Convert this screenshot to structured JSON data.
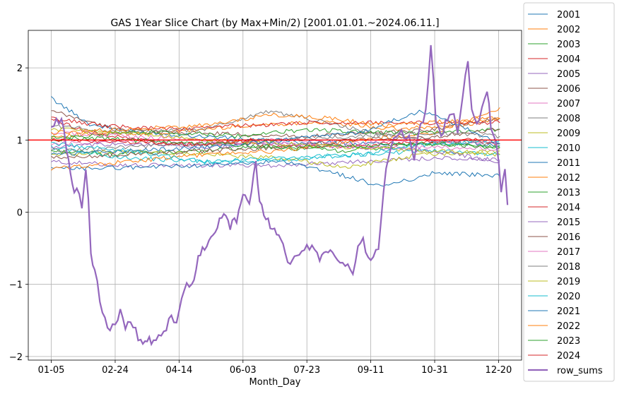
{
  "chart_data": {
    "type": "line",
    "title": "GAS 1Year Slice Chart (by Max+Min/2) [2001.01.01.~2024.06.11.]",
    "xlabel": "Month_Day",
    "ylabel": "",
    "x_ticks": [
      "01-05",
      "02-24",
      "04-14",
      "06-03",
      "07-23",
      "09-11",
      "10-31",
      "12-20"
    ],
    "x_tick_days": [
      0,
      50,
      100,
      150,
      200,
      250,
      300,
      350
    ],
    "xlim": [
      -18,
      368
    ],
    "ylim": [
      -2.05,
      2.52
    ],
    "y_ticks": [
      -2,
      -1,
      0,
      1,
      2
    ],
    "grid": true,
    "legend_position": "right-outside",
    "reference_line": {
      "y": 1.0,
      "color": "#ff0000"
    },
    "series": [
      {
        "name": "2001",
        "color": "#1f77b4",
        "points": [
          [
            0,
            1.58
          ],
          [
            30,
            1.22
          ],
          [
            60,
            1.12
          ],
          [
            120,
            1.05
          ],
          [
            180,
            0.98
          ],
          [
            240,
            0.95
          ],
          [
            300,
            0.96
          ],
          [
            351,
            0.93
          ]
        ]
      },
      {
        "name": "2002",
        "color": "#ff7f0e",
        "points": [
          [
            0,
            1.05
          ],
          [
            40,
            1.08
          ],
          [
            90,
            1.1
          ],
          [
            150,
            1.2
          ],
          [
            210,
            1.25
          ],
          [
            270,
            1.15
          ],
          [
            320,
            1.2
          ],
          [
            351,
            1.3
          ]
        ]
      },
      {
        "name": "2003",
        "color": "#2ca02c",
        "points": [
          [
            0,
            0.85
          ],
          [
            50,
            0.8
          ],
          [
            110,
            0.85
          ],
          [
            170,
            0.9
          ],
          [
            230,
            0.85
          ],
          [
            290,
            0.95
          ],
          [
            351,
            0.9
          ]
        ]
      },
      {
        "name": "2004",
        "color": "#d62728",
        "points": [
          [
            0,
            1.3
          ],
          [
            30,
            1.1
          ],
          [
            90,
            0.95
          ],
          [
            150,
            0.95
          ],
          [
            210,
            0.9
          ],
          [
            270,
            0.95
          ],
          [
            330,
            1.0
          ],
          [
            351,
            0.95
          ]
        ]
      },
      {
        "name": "2005",
        "color": "#9467bd",
        "points": [
          [
            0,
            0.7
          ],
          [
            60,
            0.65
          ],
          [
            120,
            0.65
          ],
          [
            180,
            0.65
          ],
          [
            240,
            0.7
          ],
          [
            300,
            0.75
          ],
          [
            351,
            0.72
          ]
        ]
      },
      {
        "name": "2006",
        "color": "#8c564b",
        "points": [
          [
            0,
            1.4
          ],
          [
            50,
            1.15
          ],
          [
            100,
            1.1
          ],
          [
            150,
            1.08
          ],
          [
            200,
            1.05
          ],
          [
            250,
            1.1
          ],
          [
            300,
            1.15
          ],
          [
            351,
            1.3
          ]
        ]
      },
      {
        "name": "2007",
        "color": "#e377c2",
        "points": [
          [
            0,
            0.95
          ],
          [
            60,
            1.0
          ],
          [
            120,
            0.95
          ],
          [
            180,
            1.0
          ],
          [
            240,
            0.95
          ],
          [
            300,
            1.0
          ],
          [
            351,
            0.95
          ]
        ]
      },
      {
        "name": "2008",
        "color": "#7f7f7f",
        "points": [
          [
            0,
            1.2
          ],
          [
            60,
            1.1
          ],
          [
            120,
            1.15
          ],
          [
            170,
            1.4
          ],
          [
            200,
            1.3
          ],
          [
            250,
            1.1
          ],
          [
            300,
            1.0
          ],
          [
            351,
            0.95
          ]
        ]
      },
      {
        "name": "2009",
        "color": "#bcbd22",
        "points": [
          [
            0,
            0.8
          ],
          [
            60,
            0.85
          ],
          [
            120,
            0.8
          ],
          [
            180,
            0.75
          ],
          [
            230,
            0.62
          ],
          [
            290,
            0.8
          ],
          [
            351,
            0.85
          ]
        ]
      },
      {
        "name": "2010",
        "color": "#17becf",
        "points": [
          [
            0,
            0.9
          ],
          [
            60,
            0.75
          ],
          [
            120,
            0.7
          ],
          [
            180,
            0.75
          ],
          [
            240,
            0.8
          ],
          [
            300,
            0.85
          ],
          [
            351,
            0.8
          ]
        ]
      },
      {
        "name": "2011",
        "color": "#1f77b4",
        "points": [
          [
            0,
            0.6
          ],
          [
            60,
            0.62
          ],
          [
            120,
            0.65
          ],
          [
            180,
            0.7
          ],
          [
            220,
            0.55
          ],
          [
            260,
            0.35
          ],
          [
            300,
            0.55
          ],
          [
            351,
            0.5
          ]
        ]
      },
      {
        "name": "2012",
        "color": "#ff7f0e",
        "points": [
          [
            0,
            0.6
          ],
          [
            60,
            0.7
          ],
          [
            120,
            0.8
          ],
          [
            180,
            0.85
          ],
          [
            240,
            1.0
          ],
          [
            300,
            1.1
          ],
          [
            351,
            1.45
          ]
        ]
      },
      {
        "name": "2013",
        "color": "#2ca02c",
        "points": [
          [
            0,
            1.0
          ],
          [
            50,
            1.1
          ],
          [
            100,
            1.1
          ],
          [
            150,
            1.05
          ],
          [
            200,
            1.15
          ],
          [
            250,
            1.1
          ],
          [
            300,
            1.1
          ],
          [
            351,
            1.15
          ]
        ]
      },
      {
        "name": "2014",
        "color": "#d62728",
        "points": [
          [
            0,
            1.3
          ],
          [
            40,
            1.2
          ],
          [
            100,
            1.15
          ],
          [
            150,
            1.2
          ],
          [
            200,
            1.24
          ],
          [
            250,
            1.24
          ],
          [
            300,
            1.24
          ],
          [
            351,
            1.24
          ]
        ]
      },
      {
        "name": "2015",
        "color": "#9467bd",
        "points": [
          [
            0,
            0.9
          ],
          [
            60,
            0.95
          ],
          [
            120,
            0.9
          ],
          [
            180,
            0.95
          ],
          [
            240,
            0.9
          ],
          [
            300,
            0.85
          ],
          [
            351,
            0.7
          ]
        ]
      },
      {
        "name": "2016",
        "color": "#8c564b",
        "points": [
          [
            0,
            0.75
          ],
          [
            60,
            0.8
          ],
          [
            120,
            0.85
          ],
          [
            180,
            0.9
          ],
          [
            240,
            1.0
          ],
          [
            300,
            1.05
          ],
          [
            351,
            1.15
          ]
        ]
      },
      {
        "name": "2017",
        "color": "#e377c2",
        "points": [
          [
            0,
            1.1
          ],
          [
            60,
            1.05
          ],
          [
            120,
            1.0
          ],
          [
            180,
            0.95
          ],
          [
            240,
            0.9
          ],
          [
            300,
            0.9
          ],
          [
            351,
            0.88
          ]
        ]
      },
      {
        "name": "2018",
        "color": "#7f7f7f",
        "points": [
          [
            0,
            0.85
          ],
          [
            60,
            0.9
          ],
          [
            120,
            0.95
          ],
          [
            180,
            1.0
          ],
          [
            240,
            1.05
          ],
          [
            300,
            1.1
          ],
          [
            351,
            1.05
          ]
        ]
      },
      {
        "name": "2019",
        "color": "#bcbd22",
        "points": [
          [
            0,
            1.15
          ],
          [
            60,
            1.1
          ],
          [
            120,
            1.0
          ],
          [
            180,
            0.95
          ],
          [
            240,
            0.9
          ],
          [
            300,
            0.85
          ],
          [
            351,
            0.8
          ]
        ]
      },
      {
        "name": "2020",
        "color": "#17becf",
        "points": [
          [
            0,
            0.95
          ],
          [
            60,
            0.85
          ],
          [
            120,
            0.7
          ],
          [
            180,
            0.72
          ],
          [
            240,
            0.8
          ],
          [
            300,
            0.95
          ],
          [
            351,
            1.0
          ]
        ]
      },
      {
        "name": "2021",
        "color": "#1f77b4",
        "points": [
          [
            0,
            0.8
          ],
          [
            60,
            0.85
          ],
          [
            120,
            0.9
          ],
          [
            180,
            1.0
          ],
          [
            240,
            1.1
          ],
          [
            290,
            1.4
          ],
          [
            320,
            1.2
          ],
          [
            351,
            0.95
          ]
        ]
      },
      {
        "name": "2022",
        "color": "#ff7f0e",
        "points": [
          [
            0,
            1.1
          ],
          [
            60,
            1.15
          ],
          [
            120,
            1.2
          ],
          [
            170,
            1.35
          ],
          [
            220,
            1.3
          ],
          [
            260,
            1.2
          ],
          [
            300,
            1.25
          ],
          [
            351,
            1.3
          ]
        ]
      },
      {
        "name": "2023",
        "color": "#2ca02c",
        "points": [
          [
            0,
            1.05
          ],
          [
            60,
            1.0
          ],
          [
            120,
            0.95
          ],
          [
            180,
            0.9
          ],
          [
            240,
            0.92
          ],
          [
            300,
            0.95
          ],
          [
            351,
            0.9
          ]
        ]
      },
      {
        "name": "2024",
        "color": "#d62728",
        "points": [
          [
            0,
            1.0
          ],
          [
            40,
            0.98
          ],
          [
            80,
            0.96
          ],
          [
            110,
            0.94
          ],
          [
            140,
            0.97
          ],
          [
            158,
            1.0
          ]
        ]
      },
      {
        "name": "row_sums",
        "color": "#9467bd",
        "bold": true,
        "points": [
          [
            0,
            1.2
          ],
          [
            8,
            1.3
          ],
          [
            12,
            0.9
          ],
          [
            15,
            0.5
          ],
          [
            18,
            0.25
          ],
          [
            22,
            0.3
          ],
          [
            24,
            0.1
          ],
          [
            27,
            0.55
          ],
          [
            29,
            0.2
          ],
          [
            31,
            -0.6
          ],
          [
            34,
            -0.8
          ],
          [
            38,
            -1.2
          ],
          [
            42,
            -1.5
          ],
          [
            46,
            -1.6
          ],
          [
            50,
            -1.55
          ],
          [
            54,
            -1.4
          ],
          [
            58,
            -1.6
          ],
          [
            62,
            -1.5
          ],
          [
            66,
            -1.65
          ],
          [
            70,
            -1.8
          ],
          [
            75,
            -1.75
          ],
          [
            80,
            -1.8
          ],
          [
            86,
            -1.72
          ],
          [
            90,
            -1.6
          ],
          [
            94,
            -1.45
          ],
          [
            98,
            -1.5
          ],
          [
            102,
            -1.2
          ],
          [
            106,
            -1.0
          ],
          [
            110,
            -1.05
          ],
          [
            115,
            -0.6
          ],
          [
            120,
            -0.5
          ],
          [
            125,
            -0.35
          ],
          [
            130,
            -0.2
          ],
          [
            135,
            0.0
          ],
          [
            140,
            -0.2
          ],
          [
            145,
            -0.1
          ],
          [
            150,
            0.2
          ],
          [
            155,
            0.15
          ],
          [
            160,
            0.65
          ],
          [
            163,
            0.2
          ],
          [
            168,
            -0.1
          ],
          [
            173,
            -0.2
          ],
          [
            178,
            -0.3
          ],
          [
            183,
            -0.55
          ],
          [
            187,
            -0.75
          ],
          [
            192,
            -0.6
          ],
          [
            198,
            -0.5
          ],
          [
            204,
            -0.45
          ],
          [
            210,
            -0.65
          ],
          [
            215,
            -0.5
          ],
          [
            220,
            -0.6
          ],
          [
            226,
            -0.7
          ],
          [
            232,
            -0.75
          ],
          [
            236,
            -0.8
          ],
          [
            240,
            -0.5
          ],
          [
            244,
            -0.4
          ],
          [
            250,
            -0.7
          ],
          [
            256,
            -0.5
          ],
          [
            262,
            0.6
          ],
          [
            268,
            1.0
          ],
          [
            274,
            1.1
          ],
          [
            280,
            1.05
          ],
          [
            284,
            0.75
          ],
          [
            289,
            1.2
          ],
          [
            293,
            1.4
          ],
          [
            297,
            2.3
          ],
          [
            301,
            1.3
          ],
          [
            305,
            1.05
          ],
          [
            310,
            1.3
          ],
          [
            315,
            1.4
          ],
          [
            318,
            1.1
          ],
          [
            322,
            1.6
          ],
          [
            326,
            2.1
          ],
          [
            329,
            1.4
          ],
          [
            333,
            1.2
          ],
          [
            337,
            1.4
          ],
          [
            341,
            1.7
          ],
          [
            344,
            1.2
          ],
          [
            348,
            1.0
          ],
          [
            352,
            0.3
          ],
          [
            355,
            0.6
          ],
          [
            357,
            0.1
          ]
        ]
      }
    ]
  }
}
